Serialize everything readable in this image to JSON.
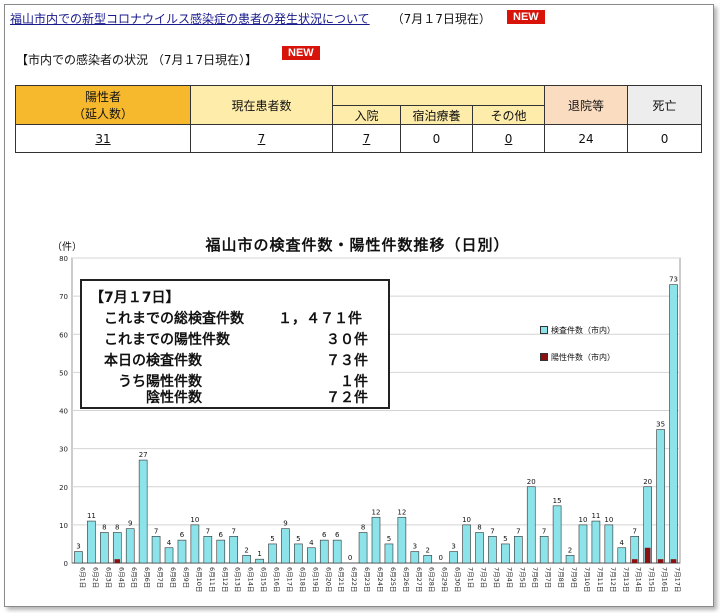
{
  "headline": {
    "link_text": "福山市内での新型コロナウイルス感染症の患者の発生状況について",
    "date_text": "（7月１7日現在）",
    "badge": "NEW"
  },
  "subheading": {
    "text": "【市内での感染者の状況 （7月１7日現在）】",
    "badge": "NEW"
  },
  "case_table": {
    "headers": {
      "positive": "陽性者",
      "positive_sub": "（延人数）",
      "current_patients": "現在患者数",
      "hospitalized": "入院",
      "lodging": "宿泊療養",
      "other": "その他",
      "discharged": "退院等",
      "deaths": "死亡"
    },
    "values": {
      "positive": "31",
      "current_patients": "7",
      "hospitalized": "7",
      "lodging": "0",
      "other": "0",
      "discharged": "24",
      "deaths": "0"
    },
    "colors": {
      "yellow": "#f6b92e",
      "light_yellow": "#fdecaa",
      "peach": "#fadcc0",
      "gray": "#ededed"
    }
  },
  "summary_box": {
    "heading": "【7月１7日】",
    "rows": [
      {
        "label": "これまでの総検査件数",
        "value": "１，４７１件"
      },
      {
        "label": "これまでの陽性件数",
        "value": "３０件"
      },
      {
        "label": "本日の検査件数",
        "value": "７３件"
      },
      {
        "label": "うち陽性件数",
        "value": "１件"
      },
      {
        "label": "陰性件数",
        "value": "７２件"
      }
    ]
  },
  "chart_data": {
    "type": "bar",
    "title": "福山市の検査件数・陽性件数推移（日別）",
    "ylabel": "（件）",
    "ylim": [
      0,
      80
    ],
    "yticks": [
      0,
      10,
      20,
      30,
      40,
      50,
      60,
      70,
      80
    ],
    "grid": true,
    "legend_position": "right",
    "categories": [
      "6月1日",
      "6月2日",
      "6月3日",
      "6月4日",
      "6月5日",
      "6月6日",
      "6月7日",
      "6月8日",
      "6月9日",
      "6月10日",
      "6月11日",
      "6月12日",
      "6月13日",
      "6月14日",
      "6月15日",
      "6月16日",
      "6月17日",
      "6月18日",
      "6月19日",
      "6月20日",
      "6月21日",
      "6月22日",
      "6月23日",
      "6月24日",
      "6月25日",
      "6月26日",
      "6月27日",
      "6月28日",
      "6月29日",
      "6月30日",
      "7月1日",
      "7月2日",
      "7月3日",
      "7月4日",
      "7月5日",
      "7月6日",
      "7月7日",
      "7月8日",
      "7月9日",
      "7月10日",
      "7月11日",
      "7月12日",
      "7月13日",
      "7月14日",
      "7月15日",
      "7月16日",
      "7月17日"
    ],
    "series": [
      {
        "name": "検査件数（市内）",
        "color": "#8de3ea",
        "values": [
          3,
          11,
          8,
          8,
          9,
          27,
          7,
          4,
          6,
          10,
          7,
          6,
          7,
          2,
          1,
          5,
          9,
          5,
          4,
          6,
          6,
          0,
          8,
          12,
          5,
          12,
          3,
          2,
          0,
          3,
          10,
          8,
          7,
          5,
          7,
          20,
          7,
          15,
          2,
          10,
          11,
          10,
          4,
          7,
          20,
          35,
          73
        ]
      },
      {
        "name": "陽性件数（市内）",
        "color": "#8b1010",
        "values": [
          0,
          0,
          0,
          1,
          0,
          0,
          0,
          0,
          0,
          0,
          0,
          0,
          0,
          0,
          0,
          0,
          0,
          0,
          0,
          0,
          0,
          0,
          0,
          0,
          0,
          0,
          0,
          0,
          0,
          0,
          0,
          0,
          0,
          0,
          0,
          0,
          0,
          0,
          0,
          0,
          0,
          0,
          0,
          1,
          4,
          1,
          1
        ]
      }
    ]
  }
}
